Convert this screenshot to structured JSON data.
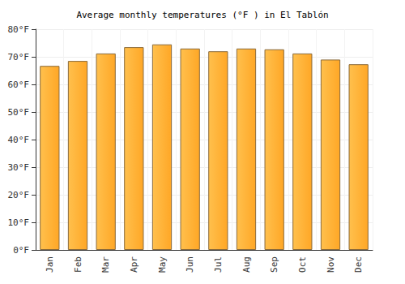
{
  "chart_data": {
    "type": "bar",
    "title": "Average monthly temperatures (°F ) in El Tablón",
    "categories": [
      "Jan",
      "Feb",
      "Mar",
      "Apr",
      "May",
      "Jun",
      "Jul",
      "Aug",
      "Sep",
      "Oct",
      "Nov",
      "Dec"
    ],
    "values": [
      66.7,
      68.5,
      71.2,
      73.5,
      74.5,
      73,
      72,
      73,
      72.7,
      71.2,
      69,
      67.3
    ],
    "color": "#ffa726",
    "ylim": [
      0,
      80
    ],
    "yticks": [
      {
        "value": 0,
        "label": "0°F"
      },
      {
        "value": 10,
        "label": "10°F"
      },
      {
        "value": 20,
        "label": "20°F"
      },
      {
        "value": 30,
        "label": "30°F"
      },
      {
        "value": 40,
        "label": "40°F"
      },
      {
        "value": 50,
        "label": "50°F"
      },
      {
        "value": 60,
        "label": "60°F"
      },
      {
        "value": 70,
        "label": "70°F"
      },
      {
        "value": 80,
        "label": "80°F"
      }
    ],
    "grid": true
  }
}
